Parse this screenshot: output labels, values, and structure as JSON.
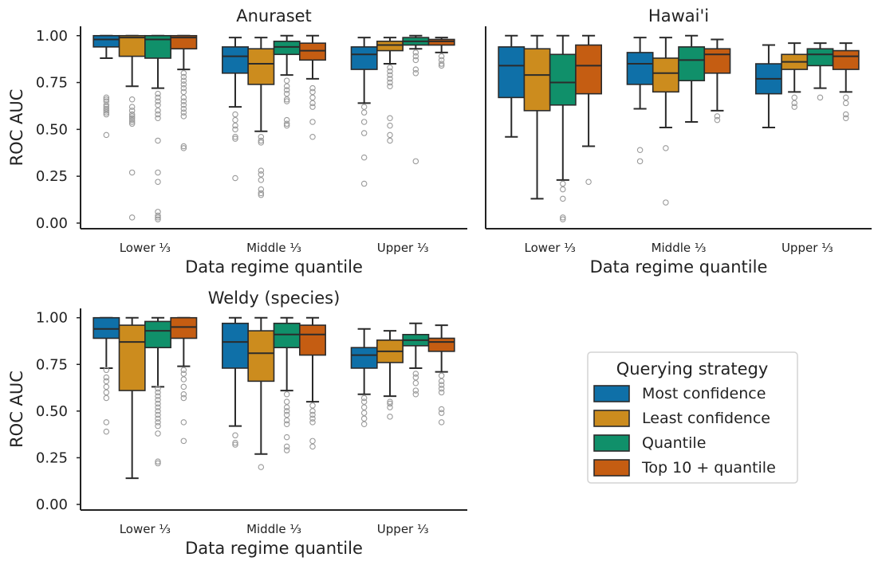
{
  "colors": {
    "most_confidence": "#0f70a8",
    "least_confidence": "#cc8c1e",
    "quantile": "#10906a",
    "top10_quantile": "#c55d12"
  },
  "chart_data": [
    {
      "type": "box",
      "title": "Anuraset",
      "xlabel": "Data regime quantile",
      "ylabel": "ROC AUC",
      "ylim": [
        -0.03,
        1.05
      ],
      "yticks": [
        "0.00",
        "0.25",
        "0.50",
        "0.75",
        "1.00"
      ],
      "categories": [
        "Lower ⅓",
        "Middle ⅓",
        "Upper ⅓"
      ],
      "groups": [
        [
          {
            "q1": 0.94,
            "med": 0.98,
            "q3": 1.0,
            "wlo": 0.88,
            "whi": 1.0,
            "fliers": [
              0.67,
              0.66,
              0.65,
              0.63,
              0.62,
              0.61,
              0.6,
              0.59,
              0.58,
              0.47
            ]
          },
          {
            "q1": 0.89,
            "med": 0.99,
            "q3": 1.0,
            "wlo": 0.73,
            "whi": 1.0,
            "fliers": [
              0.66,
              0.62,
              0.6,
              0.58,
              0.57,
              0.56,
              0.55,
              0.54,
              0.53,
              0.27,
              0.03
            ]
          },
          {
            "q1": 0.88,
            "med": 0.98,
            "q3": 1.0,
            "wlo": 0.72,
            "whi": 1.0,
            "fliers": [
              0.69,
              0.67,
              0.65,
              0.63,
              0.6,
              0.58,
              0.56,
              0.44,
              0.27,
              0.22,
              0.06,
              0.04,
              0.03,
              0.02
            ]
          },
          {
            "q1": 0.93,
            "med": 0.99,
            "q3": 1.0,
            "wlo": 0.82,
            "whi": 1.0,
            "fliers": [
              0.8,
              0.78,
              0.76,
              0.74,
              0.72,
              0.7,
              0.67,
              0.65,
              0.63,
              0.61,
              0.59,
              0.57,
              0.41,
              0.4
            ]
          }
        ],
        [
          {
            "q1": 0.8,
            "med": 0.89,
            "q3": 0.94,
            "wlo": 0.62,
            "whi": 0.99,
            "fliers": [
              0.58,
              0.55,
              0.52,
              0.5,
              0.46,
              0.45,
              0.24
            ]
          },
          {
            "q1": 0.74,
            "med": 0.85,
            "q3": 0.93,
            "wlo": 0.49,
            "whi": 0.99,
            "fliers": [
              0.46,
              0.44,
              0.43,
              0.28,
              0.26,
              0.23,
              0.18,
              0.16,
              0.15
            ]
          },
          {
            "q1": 0.9,
            "med": 0.94,
            "q3": 0.97,
            "wlo": 0.79,
            "whi": 1.0,
            "fliers": [
              0.76,
              0.73,
              0.71,
              0.69,
              0.66,
              0.65,
              0.55,
              0.53,
              0.52
            ]
          },
          {
            "q1": 0.87,
            "med": 0.92,
            "q3": 0.96,
            "wlo": 0.77,
            "whi": 1.0,
            "fliers": [
              0.72,
              0.7,
              0.67,
              0.64,
              0.62,
              0.54,
              0.46
            ]
          }
        ],
        [
          {
            "q1": 0.82,
            "med": 0.9,
            "q3": 0.94,
            "wlo": 0.64,
            "whi": 0.99,
            "fliers": [
              0.62,
              0.59,
              0.54,
              0.48,
              0.35,
              0.21
            ]
          },
          {
            "q1": 0.92,
            "med": 0.95,
            "q3": 0.97,
            "wlo": 0.85,
            "whi": 0.99,
            "fliers": [
              0.83,
              0.81,
              0.79,
              0.77,
              0.75,
              0.73,
              0.56,
              0.52,
              0.47,
              0.44
            ]
          },
          {
            "q1": 0.95,
            "med": 0.97,
            "q3": 0.99,
            "wlo": 0.93,
            "whi": 1.0,
            "fliers": [
              0.91,
              0.89,
              0.87,
              0.82,
              0.8,
              0.33
            ]
          },
          {
            "q1": 0.95,
            "med": 0.97,
            "q3": 0.98,
            "wlo": 0.91,
            "whi": 0.99,
            "fliers": [
              0.89,
              0.87,
              0.85,
              0.84
            ]
          }
        ]
      ]
    },
    {
      "type": "box",
      "title": "Hawai'i",
      "xlabel": "Data regime quantile",
      "ylabel": "",
      "ylim": [
        -0.03,
        1.05
      ],
      "yticks": [],
      "categories": [
        "Lower ⅓",
        "Middle ⅓",
        "Upper ⅓"
      ],
      "groups": [
        [
          {
            "q1": 0.67,
            "med": 0.84,
            "q3": 0.94,
            "wlo": 0.46,
            "whi": 1.0,
            "fliers": []
          },
          {
            "q1": 0.6,
            "med": 0.79,
            "q3": 0.93,
            "wlo": 0.13,
            "whi": 1.0,
            "fliers": []
          },
          {
            "q1": 0.63,
            "med": 0.75,
            "q3": 0.9,
            "wlo": 0.23,
            "whi": 1.0,
            "fliers": [
              0.21,
              0.18,
              0.13,
              0.03,
              0.02
            ]
          },
          {
            "q1": 0.69,
            "med": 0.84,
            "q3": 0.95,
            "wlo": 0.41,
            "whi": 1.0,
            "fliers": [
              0.22
            ]
          }
        ],
        [
          {
            "q1": 0.74,
            "med": 0.85,
            "q3": 0.91,
            "wlo": 0.61,
            "whi": 0.99,
            "fliers": [
              0.39,
              0.33
            ]
          },
          {
            "q1": 0.7,
            "med": 0.8,
            "q3": 0.88,
            "wlo": 0.51,
            "whi": 0.99,
            "fliers": [
              0.4,
              0.11
            ]
          },
          {
            "q1": 0.76,
            "med": 0.87,
            "q3": 0.94,
            "wlo": 0.54,
            "whi": 1.0,
            "fliers": []
          },
          {
            "q1": 0.8,
            "med": 0.9,
            "q3": 0.93,
            "wlo": 0.6,
            "whi": 0.98,
            "fliers": [
              0.57,
              0.55
            ]
          }
        ],
        [
          {
            "q1": 0.69,
            "med": 0.77,
            "q3": 0.85,
            "wlo": 0.51,
            "whi": 0.95,
            "fliers": []
          },
          {
            "q1": 0.82,
            "med": 0.86,
            "q3": 0.9,
            "wlo": 0.7,
            "whi": 0.96,
            "fliers": [
              0.67,
              0.64,
              0.62
            ]
          },
          {
            "q1": 0.84,
            "med": 0.9,
            "q3": 0.93,
            "wlo": 0.72,
            "whi": 0.96,
            "fliers": [
              0.67
            ]
          },
          {
            "q1": 0.82,
            "med": 0.89,
            "q3": 0.92,
            "wlo": 0.7,
            "whi": 0.96,
            "fliers": [
              0.67,
              0.64,
              0.58,
              0.56
            ]
          }
        ]
      ]
    },
    {
      "type": "box",
      "title": "Weldy (species)",
      "xlabel": "Data regime quantile",
      "ylabel": "ROC AUC",
      "ylim": [
        -0.03,
        1.05
      ],
      "yticks": [
        "0.00",
        "0.25",
        "0.50",
        "0.75",
        "1.00"
      ],
      "categories": [
        "Lower ⅓",
        "Middle ⅓",
        "Upper ⅓"
      ],
      "groups": [
        [
          {
            "q1": 0.89,
            "med": 0.94,
            "q3": 1.0,
            "wlo": 0.73,
            "whi": 1.0,
            "fliers": [
              0.72,
              0.68,
              0.66,
              0.63,
              0.6,
              0.57,
              0.44,
              0.39
            ]
          },
          {
            "q1": 0.61,
            "med": 0.87,
            "q3": 0.96,
            "wlo": 0.14,
            "whi": 1.0,
            "fliers": []
          },
          {
            "q1": 0.84,
            "med": 0.93,
            "q3": 0.98,
            "wlo": 0.63,
            "whi": 1.0,
            "fliers": [
              0.62,
              0.6,
              0.58,
              0.56,
              0.54,
              0.52,
              0.5,
              0.48,
              0.46,
              0.44,
              0.42,
              0.38,
              0.23,
              0.22
            ]
          },
          {
            "q1": 0.89,
            "med": 0.95,
            "q3": 1.0,
            "wlo": 0.74,
            "whi": 1.0,
            "fliers": [
              0.72,
              0.7,
              0.67,
              0.63,
              0.59,
              0.57,
              0.44,
              0.34
            ]
          }
        ],
        [
          {
            "q1": 0.73,
            "med": 0.87,
            "q3": 0.97,
            "wlo": 0.42,
            "whi": 1.0,
            "fliers": [
              0.37,
              0.33,
              0.32
            ]
          },
          {
            "q1": 0.66,
            "med": 0.81,
            "q3": 0.93,
            "wlo": 0.27,
            "whi": 1.0,
            "fliers": [
              0.2
            ]
          },
          {
            "q1": 0.84,
            "med": 0.91,
            "q3": 0.97,
            "wlo": 0.61,
            "whi": 1.0,
            "fliers": [
              0.59,
              0.55,
              0.52,
              0.5,
              0.48,
              0.45,
              0.43,
              0.36,
              0.31,
              0.29
            ]
          },
          {
            "q1": 0.8,
            "med": 0.91,
            "q3": 0.96,
            "wlo": 0.55,
            "whi": 1.0,
            "fliers": [
              0.53,
              0.5,
              0.48,
              0.46,
              0.44,
              0.34,
              0.31
            ]
          }
        ],
        [
          {
            "q1": 0.73,
            "med": 0.8,
            "q3": 0.84,
            "wlo": 0.59,
            "whi": 0.94,
            "fliers": [
              0.57,
              0.55,
              0.52,
              0.49,
              0.46,
              0.43
            ]
          },
          {
            "q1": 0.76,
            "med": 0.82,
            "q3": 0.88,
            "wlo": 0.58,
            "whi": 0.93,
            "fliers": [
              0.55,
              0.54,
              0.52,
              0.47
            ]
          },
          {
            "q1": 0.85,
            "med": 0.88,
            "q3": 0.91,
            "wlo": 0.73,
            "whi": 0.97,
            "fliers": [
              0.7,
              0.68,
              0.65,
              0.61,
              0.59
            ]
          },
          {
            "q1": 0.82,
            "med": 0.87,
            "q3": 0.89,
            "wlo": 0.71,
            "whi": 0.96,
            "fliers": [
              0.69,
              0.66,
              0.64,
              0.62,
              0.6,
              0.51,
              0.49,
              0.44
            ]
          }
        ]
      ]
    }
  ],
  "legend": {
    "title": "Querying strategy",
    "items": [
      {
        "label": "Most confidence",
        "color_key": "most_confidence"
      },
      {
        "label": "Least confidence",
        "color_key": "least_confidence"
      },
      {
        "label": "Quantile",
        "color_key": "quantile"
      },
      {
        "label": "Top 10 + quantile",
        "color_key": "top10_quantile"
      }
    ]
  }
}
